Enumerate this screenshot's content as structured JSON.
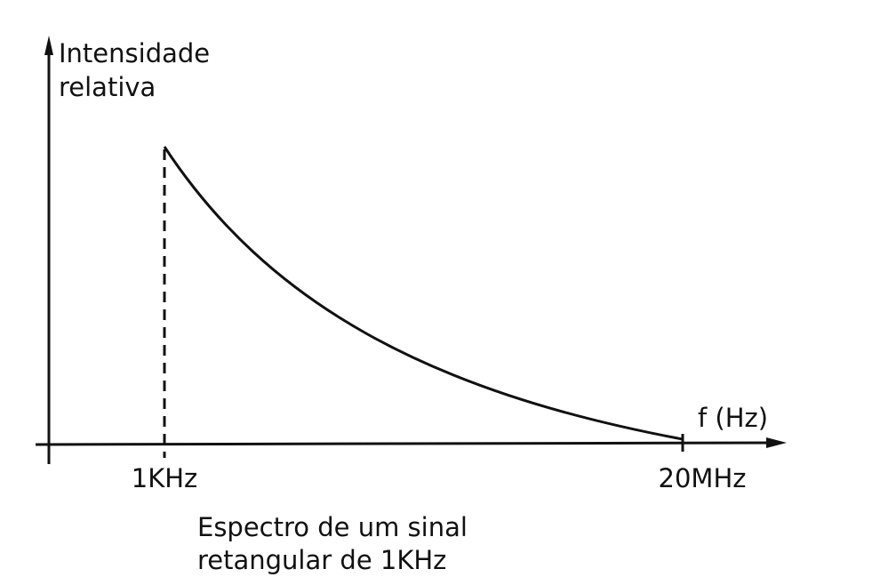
{
  "axes": {
    "y_label": [
      "Intensidade",
      "relativa"
    ],
    "x_label": "f (Hz)",
    "x_ticks": [
      "1KHz",
      "20MHz"
    ]
  },
  "caption": [
    "Espectro de um sinal",
    "retangular de 1KHz"
  ]
}
